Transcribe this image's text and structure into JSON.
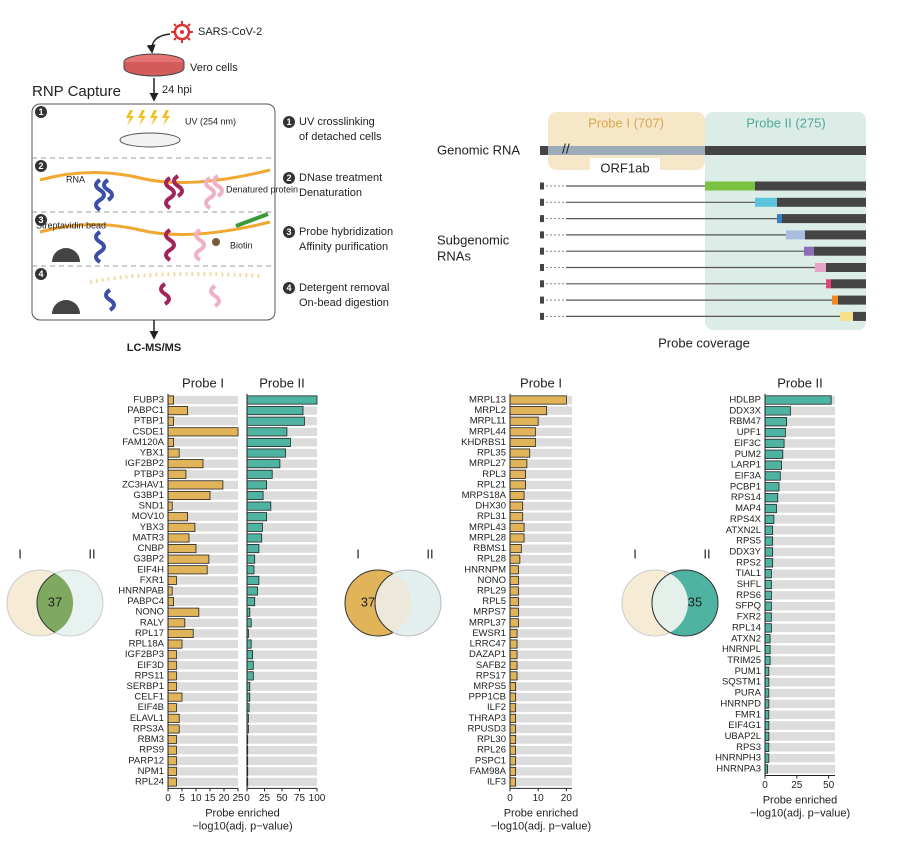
{
  "schematic": {
    "virus": "SARS-CoV-2",
    "cells": "Vero cells",
    "section": "RNP Capture",
    "time": "24 hpi",
    "uv": "UV (254 nm)",
    "rna": "RNA",
    "protein": "Denatured protein",
    "bead": "Streptavidin bead",
    "biotin": "Biotin",
    "output": "LC-MS/MS",
    "steps": [
      {
        "number": 1,
        "lines": [
          "UV crosslinking",
          "of detached cells"
        ]
      },
      {
        "number": 2,
        "lines": [
          "DNase treatment",
          "Denaturation"
        ]
      },
      {
        "number": 3,
        "lines": [
          "Probe hybridization",
          "Affinity purification"
        ]
      },
      {
        "number": 4,
        "lines": [
          "Detergent removal",
          "On-bead digestion"
        ]
      }
    ]
  },
  "genome": {
    "probe1": "Probe I (707)",
    "probe2": "Probe II (275)",
    "genomic": "Genomic RNA",
    "orf": "ORF1ab",
    "subgenomic": [
      "Subgenomic",
      "RNAs"
    ],
    "caption": "Probe coverage"
  },
  "venns": [
    {
      "left": "I",
      "right": "II",
      "count": 37,
      "highlight": "intersection"
    },
    {
      "left": "I",
      "right": "II",
      "count": 37,
      "highlight": "left"
    },
    {
      "left": "I",
      "right": "II",
      "count": 35,
      "highlight": "right"
    }
  ],
  "chart_data": [
    {
      "type": "bar",
      "orientation": "horizontal",
      "categories": [
        "FUBP3",
        "PABPC1",
        "PTBP1",
        "CSDE1",
        "FAM120A",
        "YBX1",
        "IGF2BP2",
        "PTBP3",
        "ZC3HAV1",
        "G3BP1",
        "SND1",
        "MOV10",
        "YBX3",
        "MATR3",
        "CNBP",
        "G3BP2",
        "EIF4H",
        "FXR1",
        "HNRNPAB",
        "PABPC4",
        "NONO",
        "RALY",
        "RPL17",
        "RPL18A",
        "IGF2BP3",
        "EIF3D",
        "RPS11",
        "SERBP1",
        "CELF1",
        "EIF4B",
        "ELAVL1",
        "RPS3A",
        "RBM3",
        "RPS9",
        "PARP12",
        "NPM1",
        "RPL24"
      ],
      "series": [
        {
          "name": "Probe I",
          "color": "#e2b45a",
          "xlim": [
            0,
            25
          ],
          "xticks": [
            0,
            5,
            10,
            15,
            20,
            25
          ],
          "values": [
            2,
            7,
            2,
            25,
            2,
            4,
            12.5,
            6.4,
            19.6,
            15,
            1.5,
            7,
            9.6,
            7.5,
            10,
            14.6,
            14,
            3,
            1.5,
            2,
            11,
            6,
            9,
            5,
            3,
            3,
            3,
            3,
            5,
            3,
            4,
            4,
            3,
            3,
            3,
            3,
            3
          ]
        },
        {
          "name": "Probe II",
          "color": "#4fb3a2",
          "xlim": [
            0,
            100
          ],
          "xticks": [
            0,
            25,
            50,
            75,
            100
          ],
          "values": [
            100,
            80,
            82,
            57,
            62,
            55,
            47,
            36,
            28,
            23,
            34,
            28,
            22,
            21,
            17,
            11,
            10,
            17,
            15,
            11,
            4,
            6,
            2,
            6,
            8,
            9,
            9,
            4,
            4,
            3,
            2,
            2,
            1,
            1,
            1,
            1,
            1
          ]
        }
      ],
      "xlabel": [
        "Probe enriched",
        "−log10(adj. p−value)"
      ]
    },
    {
      "type": "bar",
      "orientation": "horizontal",
      "categories": [
        "MRPL13",
        "MRPL2",
        "MRPL11",
        "MRPL44",
        "KHDRBS1",
        "RPL35",
        "MRPL27",
        "RPL3",
        "RPL21",
        "MRPS18A",
        "DHX30",
        "RPL31",
        "MRPL43",
        "MRPL28",
        "RBMS1",
        "RPL28",
        "HNRNPM",
        "NONO",
        "RPL29",
        "RPL5",
        "MRPS7",
        "MRPL37",
        "EWSR1",
        "LRRC47",
        "DAZAP1",
        "SAFB2",
        "RPS17",
        "MRPS5",
        "PPP1CB",
        "ILF2",
        "THRAP3",
        "RPUSD3",
        "RPL30",
        "RPL26",
        "PSPC1",
        "FAM98A",
        "ILF3"
      ],
      "series": [
        {
          "name": "Probe I",
          "color": "#e2b45a",
          "xlim": [
            0,
            22
          ],
          "xticks": [
            0,
            10,
            20
          ],
          "values": [
            20,
            13,
            10,
            9,
            9,
            7,
            6,
            5.5,
            5.5,
            5,
            4.5,
            4.5,
            5,
            5,
            4,
            3.5,
            3,
            3,
            3,
            3,
            3,
            3,
            2.5,
            2.5,
            2.5,
            2.5,
            2.5,
            2,
            2,
            2,
            2,
            2,
            2,
            2,
            2,
            2,
            2
          ]
        }
      ],
      "xlabel": [
        "Probe enriched",
        "−log10(adj. p−value)"
      ]
    },
    {
      "type": "bar",
      "orientation": "horizontal",
      "categories": [
        "HDLBP",
        "DDX3X",
        "RBM47",
        "UPF1",
        "EIF3C",
        "PUM2",
        "LARP1",
        "EIF3A",
        "PCBP1",
        "RPS14",
        "MAP4",
        "RPS4X",
        "ATXN2L",
        "RPS5",
        "DDX3Y",
        "RPS2",
        "TIAL1",
        "SHFL",
        "RPS6",
        "SFPQ",
        "FXR2",
        "RPL14",
        "ATXN2",
        "HNRNPL",
        "TRIM25",
        "PUM1",
        "SQSTM1",
        "PURA",
        "HNRNPD",
        "FMR1",
        "EIF4G1",
        "UBAP2L",
        "RPS3",
        "HNRNPH3",
        "HNRNPA3"
      ],
      "series": [
        {
          "name": "Probe II",
          "color": "#4fb3a2",
          "xlim": [
            0,
            55
          ],
          "xticks": [
            0,
            25,
            50
          ],
          "values": [
            52,
            20,
            17,
            16,
            15,
            14,
            13,
            12,
            11,
            10,
            9,
            7,
            6,
            6,
            6,
            6,
            5,
            5,
            5,
            5,
            5,
            5,
            4,
            4,
            4,
            3,
            3,
            3,
            3,
            3,
            3,
            3,
            3,
            3,
            2
          ]
        }
      ],
      "xlabel": [
        "Probe enriched",
        "−log10(adj. p−value)"
      ]
    }
  ]
}
